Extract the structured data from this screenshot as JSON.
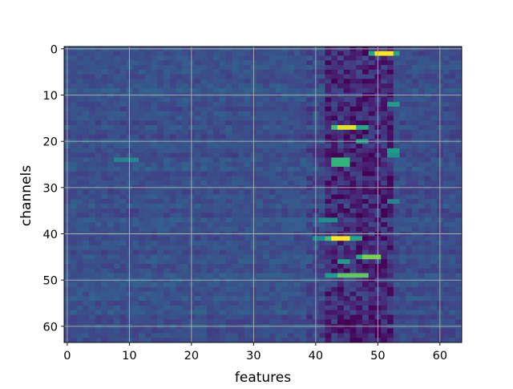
{
  "chart_data": {
    "type": "heatmap",
    "title": "",
    "xlabel": "features",
    "ylabel": "channels",
    "colormap": "viridis",
    "xlim": [
      -0.5,
      63.5
    ],
    "ylim": [
      63.5,
      -0.5
    ],
    "y_axis_inverted": true,
    "grid": true,
    "x_ticks": [
      0,
      10,
      20,
      30,
      40,
      50,
      60
    ],
    "y_ticks": [
      0,
      10,
      20,
      30,
      40,
      50,
      60
    ],
    "x_tick_labels": [
      "0",
      "10",
      "20",
      "30",
      "40",
      "50",
      "60"
    ],
    "y_tick_labels": [
      "0",
      "10",
      "20",
      "30",
      "40",
      "50",
      "60"
    ],
    "n_rows": 64,
    "n_cols": 64,
    "background_level": 0.25,
    "column_profile": [
      {
        "cols": [
          0,
          38
        ],
        "level": 0.25,
        "variation": 0.05
      },
      {
        "cols": [
          39,
          41
        ],
        "level": 0.22,
        "variation": 0.08
      },
      {
        "cols": [
          42,
          52
        ],
        "level": 0.12,
        "variation": 0.12
      },
      {
        "cols": [
          53,
          63
        ],
        "level": 0.24,
        "variation": 0.05
      }
    ],
    "features": [
      {
        "row": 1,
        "cols": [
          50,
          52
        ],
        "value": 1.0
      },
      {
        "row": 1,
        "cols": [
          49,
          49
        ],
        "value": 0.6
      },
      {
        "row": 1,
        "cols": [
          53,
          53
        ],
        "value": 0.6
      },
      {
        "row": 17,
        "cols": [
          44,
          46
        ],
        "value": 0.95
      },
      {
        "row": 17,
        "cols": [
          43,
          43
        ],
        "value": 0.7
      },
      {
        "row": 17,
        "cols": [
          47,
          48
        ],
        "value": 0.6
      },
      {
        "row": 12,
        "cols": [
          52,
          53
        ],
        "value": 0.55
      },
      {
        "row": 20,
        "cols": [
          47,
          48
        ],
        "value": 0.55
      },
      {
        "row": 22,
        "cols": [
          52,
          53
        ],
        "value": 0.55
      },
      {
        "row": 23,
        "cols": [
          52,
          53
        ],
        "value": 0.5
      },
      {
        "row": 24,
        "cols": [
          43,
          45
        ],
        "value": 0.65
      },
      {
        "row": 25,
        "cols": [
          43,
          45
        ],
        "value": 0.65
      },
      {
        "row": 24,
        "cols": [
          8,
          11
        ],
        "value": 0.45
      },
      {
        "row": 37,
        "cols": [
          41,
          43
        ],
        "value": 0.5
      },
      {
        "row": 41,
        "cols": [
          43,
          45
        ],
        "value": 1.0
      },
      {
        "row": 41,
        "cols": [
          42,
          42
        ],
        "value": 0.7
      },
      {
        "row": 41,
        "cols": [
          46,
          47
        ],
        "value": 0.6
      },
      {
        "row": 41,
        "cols": [
          40,
          41
        ],
        "value": 0.5
      },
      {
        "row": 45,
        "cols": [
          48,
          50
        ],
        "value": 0.8
      },
      {
        "row": 45,
        "cols": [
          47,
          47
        ],
        "value": 0.6
      },
      {
        "row": 46,
        "cols": [
          44,
          45
        ],
        "value": 0.55
      },
      {
        "row": 49,
        "cols": [
          44,
          48
        ],
        "value": 0.75
      },
      {
        "row": 49,
        "cols": [
          42,
          43
        ],
        "value": 0.55
      },
      {
        "row": 33,
        "cols": [
          52,
          53
        ],
        "value": 0.45
      }
    ]
  }
}
